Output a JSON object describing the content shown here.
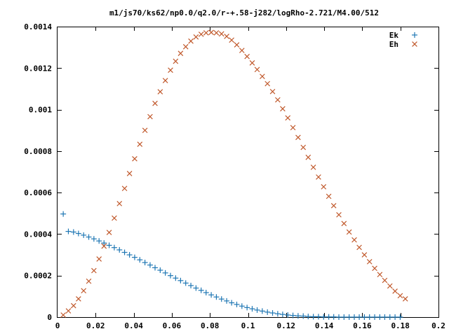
{
  "chart_data": {
    "type": "scatter",
    "title": "m1/js70/ks62/np0.0/q2.0/r-+.58-j282/logRho-2.721/M4.00/512",
    "xlabel": "",
    "ylabel": "",
    "xlim": [
      0,
      0.2
    ],
    "ylim": [
      0,
      0.0014
    ],
    "x_ticks": [
      "0",
      "0.02",
      "0.04",
      "0.06",
      "0.08",
      "0.1",
      "0.12",
      "0.14",
      "0.16",
      "0.18",
      "0.2"
    ],
    "y_ticks": [
      "0",
      "0.0002",
      "0.0004",
      "0.0006",
      "0.0008",
      "0.001",
      "0.0012",
      "0.0014"
    ],
    "legend_position": "top-right",
    "grid": false,
    "series": [
      {
        "name": "Ek",
        "marker": "plus",
        "color": "#1f77b4",
        "points": [
          [
            0.003,
            0.000497
          ],
          [
            0.0057,
            0.000413
          ],
          [
            0.0084,
            0.00041
          ],
          [
            0.011,
            0.000403
          ],
          [
            0.0137,
            0.000395
          ],
          [
            0.0164,
            0.000386
          ],
          [
            0.0191,
            0.000377
          ],
          [
            0.0218,
            0.000367
          ],
          [
            0.0244,
            0.000357
          ],
          [
            0.0271,
            0.000346
          ],
          [
            0.0298,
            0.000335
          ],
          [
            0.0325,
            0.000324
          ],
          [
            0.0352,
            0.000312
          ],
          [
            0.0378,
            0.0003
          ],
          [
            0.0405,
            0.000288
          ],
          [
            0.0432,
            0.000276
          ],
          [
            0.0459,
            0.000263
          ],
          [
            0.0486,
            0.000251
          ],
          [
            0.0512,
            0.000238
          ],
          [
            0.0539,
            0.000226
          ],
          [
            0.0566,
            0.000213
          ],
          [
            0.0593,
            0.0002
          ],
          [
            0.062,
            0.000188
          ],
          [
            0.0646,
            0.000176
          ],
          [
            0.0673,
            0.000164
          ],
          [
            0.07,
            0.000152
          ],
          [
            0.0727,
            0.00014
          ],
          [
            0.0754,
            0.000129
          ],
          [
            0.078,
            0.000118
          ],
          [
            0.0807,
            0.000107
          ],
          [
            0.0834,
            9.7e-05
          ],
          [
            0.0861,
            8.7e-05
          ],
          [
            0.0888,
            7.8e-05
          ],
          [
            0.0914,
            6.9e-05
          ],
          [
            0.0941,
            6.1e-05
          ],
          [
            0.0968,
            5.3e-05
          ],
          [
            0.0995,
            4.6e-05
          ],
          [
            0.1022,
            4e-05
          ],
          [
            0.1048,
            3.4e-05
          ],
          [
            0.1075,
            2.9e-05
          ],
          [
            0.1102,
            2.4e-05
          ],
          [
            0.1129,
            2e-05
          ],
          [
            0.1156,
            1.6e-05
          ],
          [
            0.1182,
            1.3e-05
          ],
          [
            0.1209,
            1e-05
          ],
          [
            0.1236,
            8e-06
          ],
          [
            0.1263,
            6e-06
          ],
          [
            0.129,
            5e-06
          ],
          [
            0.1316,
            3e-06
          ],
          [
            0.1343,
            2e-06
          ],
          [
            0.137,
            2e-06
          ],
          [
            0.1397,
            1e-06
          ],
          [
            0.1424,
            1e-06
          ],
          [
            0.145,
            1e-06
          ],
          [
            0.1477,
            0.0
          ],
          [
            0.1504,
            0.0
          ],
          [
            0.1531,
            0.0
          ],
          [
            0.1558,
            0.0
          ],
          [
            0.1584,
            0.0
          ],
          [
            0.1611,
            0.0
          ],
          [
            0.1638,
            0.0
          ],
          [
            0.1665,
            0.0
          ],
          [
            0.1692,
            0.0
          ],
          [
            0.1718,
            0.0
          ],
          [
            0.1745,
            0.0
          ],
          [
            0.1772,
            0.0
          ],
          [
            0.1799,
            0.0
          ]
        ]
      },
      {
        "name": "Eh",
        "marker": "cross",
        "color": "#c0582b",
        "points": [
          [
            0.003,
            1e-05
          ],
          [
            0.0057,
            3e-05
          ],
          [
            0.0084,
            5.5e-05
          ],
          [
            0.011,
            8.8e-05
          ],
          [
            0.0137,
            0.000127
          ],
          [
            0.0164,
            0.000173
          ],
          [
            0.0191,
            0.000224
          ],
          [
            0.0218,
            0.00028
          ],
          [
            0.0244,
            0.000342
          ],
          [
            0.0271,
            0.000408
          ],
          [
            0.0298,
            0.000477
          ],
          [
            0.0325,
            0.000547
          ],
          [
            0.0352,
            0.00062
          ],
          [
            0.0378,
            0.000692
          ],
          [
            0.0405,
            0.000763
          ],
          [
            0.0432,
            0.000833
          ],
          [
            0.0459,
            0.0009
          ],
          [
            0.0486,
            0.000966
          ],
          [
            0.0512,
            0.00103
          ],
          [
            0.0539,
            0.001086
          ],
          [
            0.0566,
            0.00114
          ],
          [
            0.0593,
            0.00119
          ],
          [
            0.062,
            0.001233
          ],
          [
            0.0646,
            0.001271
          ],
          [
            0.0673,
            0.001303
          ],
          [
            0.07,
            0.00133
          ],
          [
            0.0727,
            0.00135
          ],
          [
            0.0754,
            0.001363
          ],
          [
            0.078,
            0.00137
          ],
          [
            0.0807,
            0.001372
          ],
          [
            0.0834,
            0.00137
          ],
          [
            0.0861,
            0.001365
          ],
          [
            0.0888,
            0.001353
          ],
          [
            0.0914,
            0.001335
          ],
          [
            0.0941,
            0.001312
          ],
          [
            0.0968,
            0.001285
          ],
          [
            0.0995,
            0.001256
          ],
          [
            0.1022,
            0.001225
          ],
          [
            0.1048,
            0.001193
          ],
          [
            0.1075,
            0.00116
          ],
          [
            0.1102,
            0.001125
          ],
          [
            0.1129,
            0.001087
          ],
          [
            0.1156,
            0.001047
          ],
          [
            0.1182,
            0.001004
          ],
          [
            0.1209,
            0.00096
          ],
          [
            0.1236,
            0.000913
          ],
          [
            0.1263,
            0.000866
          ],
          [
            0.129,
            0.000818
          ],
          [
            0.1316,
            0.00077
          ],
          [
            0.1343,
            0.000722
          ],
          [
            0.137,
            0.000675
          ],
          [
            0.1397,
            0.000628
          ],
          [
            0.1424,
            0.000582
          ],
          [
            0.145,
            0.000537
          ],
          [
            0.1477,
            0.000493
          ],
          [
            0.1504,
            0.000451
          ],
          [
            0.1531,
            0.00041
          ],
          [
            0.1558,
            0.000372
          ],
          [
            0.1584,
            0.000336
          ],
          [
            0.1611,
            0.0003
          ],
          [
            0.1638,
            0.000267
          ],
          [
            0.1665,
            0.000235
          ],
          [
            0.1692,
            0.000205
          ],
          [
            0.1718,
            0.000177
          ],
          [
            0.1745,
            0.00015
          ],
          [
            0.1772,
            0.000125
          ],
          [
            0.1799,
            0.000103
          ],
          [
            0.1826,
            8.8e-05
          ]
        ]
      }
    ]
  }
}
